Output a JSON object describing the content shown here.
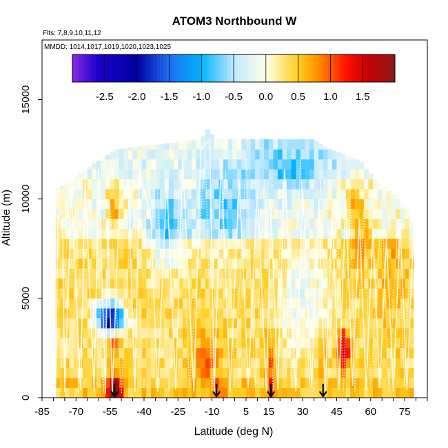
{
  "chart_data": {
    "type": "heatmap",
    "title": "ATOM3 Northbound W",
    "flights_label": "Flts: 7,8,9,10,11,12",
    "dates_label": "MMDD: 1014,1017,1019,1020,1023,1025",
    "xlabel": "Latitude (deg N)",
    "ylabel": "Altitude (m)",
    "xlim": [
      -85,
      85
    ],
    "ylim": [
      0,
      18000
    ],
    "x_ticks": [
      -85,
      -70,
      -55,
      -40,
      -25,
      -10,
      5,
      15,
      30,
      45,
      60,
      75
    ],
    "y_ticks": [
      0,
      5000,
      10000,
      15000
    ],
    "colorbar": {
      "min": -3.0,
      "max": 2.0,
      "ticks": [
        "-2.5",
        "-2.0",
        "-1.5",
        "-1.0",
        "-0.5",
        "0.0",
        "0.5",
        "1.0",
        "1.5"
      ],
      "tick_values": [
        -2.5,
        -2.0,
        -1.5,
        -1.0,
        -0.5,
        0.0,
        0.5,
        1.0,
        1.5
      ],
      "stops": [
        {
          "v": -3.0,
          "c": "#8a2be2"
        },
        {
          "v": -2.6,
          "c": "#1a00cc"
        },
        {
          "v": -2.0,
          "c": "#0000a0"
        },
        {
          "v": -1.5,
          "c": "#1e6ef0"
        },
        {
          "v": -1.0,
          "c": "#00b4ff"
        },
        {
          "v": -0.5,
          "c": "#bfe8ff"
        },
        {
          "v": 0.0,
          "c": "#ffffe8"
        },
        {
          "v": 0.25,
          "c": "#ffe680"
        },
        {
          "v": 0.5,
          "c": "#ffcc20"
        },
        {
          "v": 0.75,
          "c": "#ff9c00"
        },
        {
          "v": 1.0,
          "c": "#ff5a00"
        },
        {
          "v": 1.25,
          "c": "#ff1000"
        },
        {
          "v": 1.6,
          "c": "#c00000"
        },
        {
          "v": 2.0,
          "c": "#8b1a1a"
        }
      ]
    },
    "envelope": [
      {
        "lat": -85,
        "top": 0
      },
      {
        "lat": -79,
        "top": 10500
      },
      {
        "lat": -71,
        "top": 11000
      },
      {
        "lat": -66,
        "top": 11500
      },
      {
        "lat": -59,
        "top": 12000
      },
      {
        "lat": -52,
        "top": 12500
      },
      {
        "lat": -30,
        "top": 12800
      },
      {
        "lat": -15,
        "top": 13000
      },
      {
        "lat": -12,
        "top": 13500
      },
      {
        "lat": -8,
        "top": 13000
      },
      {
        "lat": 35,
        "top": 13000
      },
      {
        "lat": 42,
        "top": 12500
      },
      {
        "lat": 55,
        "top": 12000
      },
      {
        "lat": 62,
        "top": 11000
      },
      {
        "lat": 72,
        "top": 10000
      },
      {
        "lat": 76,
        "top": 9500
      },
      {
        "lat": 79,
        "top": 8500
      },
      {
        "lat": 80,
        "top": 0
      }
    ],
    "anomalies": [
      {
        "lat": -55,
        "alt": 4000,
        "value": -2.4,
        "sx": 4,
        "sy": 500
      },
      {
        "lat": -54,
        "alt": 2800,
        "value": 1.0,
        "sx": 2,
        "sy": 500
      },
      {
        "lat": -53,
        "alt": 500,
        "value": 1.9,
        "sx": 2.5,
        "sy": 500
      },
      {
        "lat": -53,
        "alt": 9500,
        "value": 1.0,
        "sx": 2,
        "sy": 800
      },
      {
        "lat": -12,
        "alt": 2000,
        "value": 0.9,
        "sx": 4,
        "sy": 1000
      },
      {
        "lat": -7,
        "alt": 400,
        "value": 0.7,
        "sx": 2,
        "sy": 400
      },
      {
        "lat": 16,
        "alt": 1500,
        "value": 1.0,
        "sx": 1.5,
        "sy": 1500
      },
      {
        "lat": 39,
        "alt": 2000,
        "value": 0.8,
        "sx": 1.5,
        "sy": 800
      },
      {
        "lat": 48,
        "alt": 2400,
        "value": 1.6,
        "sx": 2,
        "sy": 700
      },
      {
        "lat": 55,
        "alt": 8500,
        "value": 0.9,
        "sx": 3,
        "sy": 1500
      },
      {
        "lat": 52,
        "alt": 10000,
        "value": 0.8,
        "sx": 2,
        "sy": 500
      },
      {
        "lat": 70,
        "alt": 6000,
        "value": 0.6,
        "sx": 4,
        "sy": 2000
      },
      {
        "lat": -30,
        "alt": 8500,
        "value": -0.5,
        "sx": 6,
        "sy": 1500
      },
      {
        "lat": -5,
        "alt": 9500,
        "value": -0.4,
        "sx": 10,
        "sy": 1500
      },
      {
        "lat": 25,
        "alt": 11500,
        "value": -0.4,
        "sx": 12,
        "sy": 1000
      },
      {
        "lat": 30,
        "alt": 5000,
        "value": -0.2,
        "sx": 8,
        "sy": 2000
      }
    ],
    "flight_tracks": [
      [
        [
          -79,
          200
        ],
        [
          -78,
          9000
        ],
        [
          -76,
          9500
        ],
        [
          -75,
          300
        ],
        [
          -72,
          10500
        ],
        [
          -68,
          400
        ],
        [
          -66,
          11000
        ],
        [
          -62,
          300
        ],
        [
          -60,
          11500
        ],
        [
          -57,
          200
        ],
        [
          -56,
          9000
        ],
        [
          -54,
          200
        ],
        [
          -51,
          9500
        ],
        [
          -47,
          11000
        ],
        [
          -44,
          300
        ],
        [
          -42,
          11500
        ],
        [
          -37,
          9000
        ],
        [
          -34,
          300
        ],
        [
          -30,
          11000
        ],
        [
          -26,
          400
        ],
        [
          -23,
          12000
        ],
        [
          -18,
          300
        ],
        [
          -15,
          12500
        ],
        [
          -11,
          13000
        ],
        [
          -9,
          200
        ],
        [
          -6,
          12000
        ],
        [
          -2,
          300
        ],
        [
          2,
          11000
        ],
        [
          6,
          500
        ],
        [
          10,
          10500
        ],
        [
          14,
          300
        ],
        [
          16,
          9500
        ],
        [
          19,
          400
        ],
        [
          22,
          11500
        ],
        [
          27,
          300
        ],
        [
          30,
          10500
        ],
        [
          34,
          500
        ],
        [
          37,
          10000
        ],
        [
          40,
          300
        ],
        [
          43,
          9500
        ],
        [
          46,
          400
        ],
        [
          49,
          10000
        ],
        [
          52,
          600
        ],
        [
          55,
          9000
        ],
        [
          58,
          400
        ],
        [
          61,
          8500
        ],
        [
          64,
          500
        ],
        [
          67,
          8000
        ],
        [
          70,
          300
        ],
        [
          73,
          8800
        ],
        [
          76,
          400
        ],
        [
          79,
          8700
        ]
      ],
      [
        [
          -77,
          300
        ],
        [
          -74,
          8000
        ],
        [
          -70,
          9000
        ],
        [
          -69,
          200
        ],
        [
          -65,
          10000
        ],
        [
          -61,
          9500
        ],
        [
          -58,
          300
        ],
        [
          -55,
          9800
        ],
        [
          -50,
          200
        ],
        [
          -45,
          11000
        ],
        [
          -40,
          400
        ],
        [
          -35,
          12000
        ],
        [
          -29,
          300
        ],
        [
          -24,
          11500
        ],
        [
          -20,
          500
        ],
        [
          -13,
          12500
        ],
        [
          -10,
          300
        ],
        [
          -4,
          11500
        ],
        [
          0,
          600
        ],
        [
          5,
          12000
        ],
        [
          9,
          500
        ],
        [
          13,
          11000
        ],
        [
          17,
          300
        ],
        [
          21,
          10000
        ],
        [
          25,
          500
        ],
        [
          29,
          12000
        ],
        [
          33,
          600
        ],
        [
          38,
          11000
        ],
        [
          41,
          500
        ],
        [
          45,
          10000
        ],
        [
          48,
          300
        ],
        [
          51,
          10500
        ],
        [
          53,
          300
        ],
        [
          57,
          9500
        ],
        [
          60,
          500
        ],
        [
          65,
          10000
        ],
        [
          68,
          300
        ],
        [
          72,
          9000
        ],
        [
          75,
          500
        ],
        [
          78,
          9200
        ]
      ]
    ],
    "arrows": [
      {
        "lat": -53
      },
      {
        "lat": -8
      },
      {
        "lat": 16
      },
      {
        "lat": 39
      }
    ]
  }
}
